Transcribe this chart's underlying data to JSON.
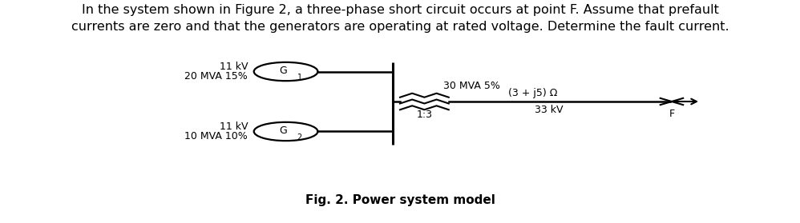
{
  "title_line1": "In the system shown in Figure 2, a three-phase short circuit occurs at point F. Assume that prefault",
  "title_line2": "currents are zero and that the generators are operating at rated voltage. Determine the fault current.",
  "caption": "Fig. 2. Power system model",
  "bg_color": "#ffffff",
  "gen1_label_line1": "11 kV",
  "gen1_label_line2": "20 MVA 15%",
  "gen2_label_line1": "11 kV",
  "gen2_label_line2": "10 MVA 10%",
  "transformer_label": "30 MVA 5%",
  "ratio_label": "1:3",
  "impedance_label": "(3 + j5) Ω",
  "voltage_label": "33 kV",
  "fault_label": "F",
  "G1_label": "G",
  "G1_sub": "1",
  "G2_label": "G",
  "G2_sub": "2"
}
